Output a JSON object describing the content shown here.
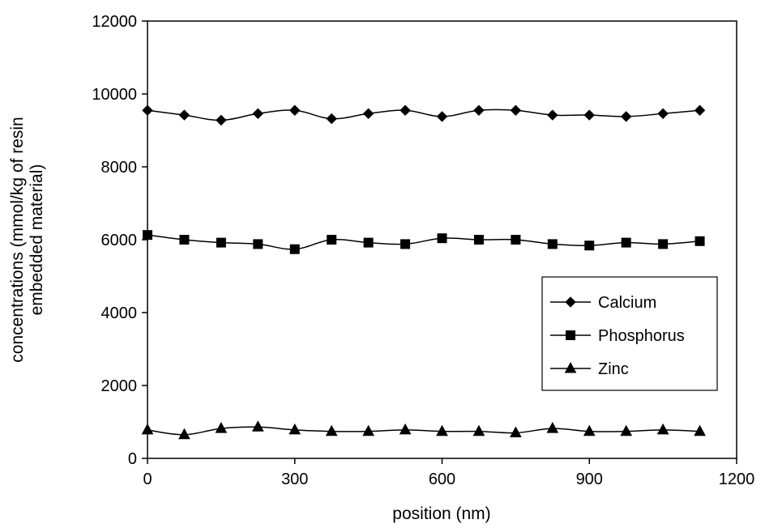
{
  "chart_data": {
    "type": "line",
    "xlabel": "position (nm)",
    "ylabel_lines": [
      "concentrations (mmol/kg of resin",
      "embedded material)"
    ],
    "xlim": [
      0,
      1200
    ],
    "ylim": [
      0,
      12000
    ],
    "xticks": [
      0,
      300,
      600,
      900,
      1200
    ],
    "yticks": [
      0,
      2000,
      4000,
      6000,
      8000,
      10000,
      12000
    ],
    "grid": false,
    "legend_position": "right-middle",
    "x": [
      0,
      75,
      150,
      225,
      300,
      375,
      450,
      525,
      600,
      675,
      750,
      825,
      900,
      975,
      1050,
      1125
    ],
    "series": [
      {
        "name": "Calcium",
        "marker": "diamond",
        "values": [
          9550,
          9420,
          9280,
          9460,
          9550,
          9320,
          9460,
          9550,
          9380,
          9550,
          9550,
          9420,
          9420,
          9380,
          9460,
          9550
        ]
      },
      {
        "name": "Phosphorus",
        "marker": "square",
        "values": [
          6130,
          6000,
          5920,
          5880,
          5740,
          6000,
          5920,
          5880,
          6040,
          6000,
          6000,
          5880,
          5840,
          5920,
          5880,
          5960
        ]
      },
      {
        "name": "Zinc",
        "marker": "triangle",
        "values": [
          780,
          650,
          820,
          860,
          780,
          740,
          740,
          780,
          740,
          740,
          700,
          820,
          740,
          740,
          780,
          740
        ]
      }
    ]
  }
}
